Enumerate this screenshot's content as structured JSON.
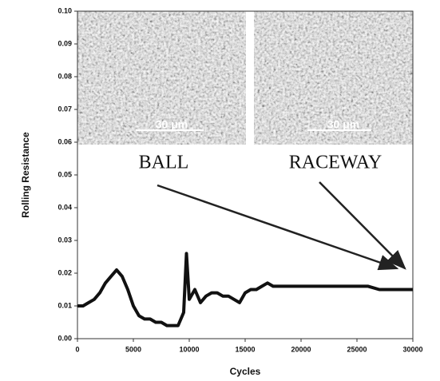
{
  "chart_data": {
    "type": "line",
    "x_label": "Cycles",
    "y_label": "Rolling Resistance",
    "xlim": [
      0,
      30000
    ],
    "ylim": [
      0,
      0.1
    ],
    "xticks": [
      0,
      5000,
      10000,
      15000,
      20000,
      25000,
      30000
    ],
    "yticks": [
      {
        "value": 0,
        "label": "0.00"
      },
      {
        "value": 0.01,
        "label": "0.01"
      },
      {
        "value": 0.02,
        "label": "0.02"
      },
      {
        "value": 0.03,
        "label": "0.03"
      },
      {
        "value": 0.04,
        "label": "0.04"
      },
      {
        "value": 0.05,
        "label": "0.05"
      },
      {
        "value": 0.06,
        "label": "0.06"
      },
      {
        "value": 0.07,
        "label": "0.07"
      },
      {
        "value": 0.08,
        "label": "0.08"
      },
      {
        "value": 0.09,
        "label": "0.09"
      },
      {
        "value": 0.1,
        "label": "0.10"
      }
    ],
    "x": [
      0,
      500,
      1000,
      1500,
      2000,
      2500,
      3000,
      3500,
      4000,
      4500,
      5000,
      5500,
      6000,
      6500,
      7000,
      7500,
      8000,
      8500,
      9000,
      9500,
      9750,
      10000,
      10500,
      11000,
      11500,
      12000,
      12500,
      13000,
      13500,
      14000,
      14500,
      15000,
      15500,
      16000,
      16500,
      17000,
      17500,
      18000,
      19000,
      20000,
      21000,
      22000,
      23000,
      24000,
      25000,
      26000,
      27000,
      28000,
      29000,
      30000
    ],
    "series": [
      {
        "color": "#111111",
        "values": [
          0.01,
          0.01,
          0.011,
          0.012,
          0.014,
          0.017,
          0.019,
          0.021,
          0.019,
          0.015,
          0.01,
          0.007,
          0.006,
          0.006,
          0.005,
          0.005,
          0.004,
          0.004,
          0.004,
          0.008,
          0.026,
          0.012,
          0.015,
          0.011,
          0.013,
          0.014,
          0.014,
          0.013,
          0.013,
          0.012,
          0.011,
          0.014,
          0.015,
          0.015,
          0.016,
          0.017,
          0.016,
          0.016,
          0.016,
          0.016,
          0.016,
          0.016,
          0.016,
          0.016,
          0.016,
          0.016,
          0.015,
          0.015,
          0.015,
          0.015
        ]
      }
    ],
    "annotations": [
      "BALL",
      "RACEWAY"
    ],
    "scale_bars": [
      "30 μm",
      "30 μm"
    ]
  }
}
